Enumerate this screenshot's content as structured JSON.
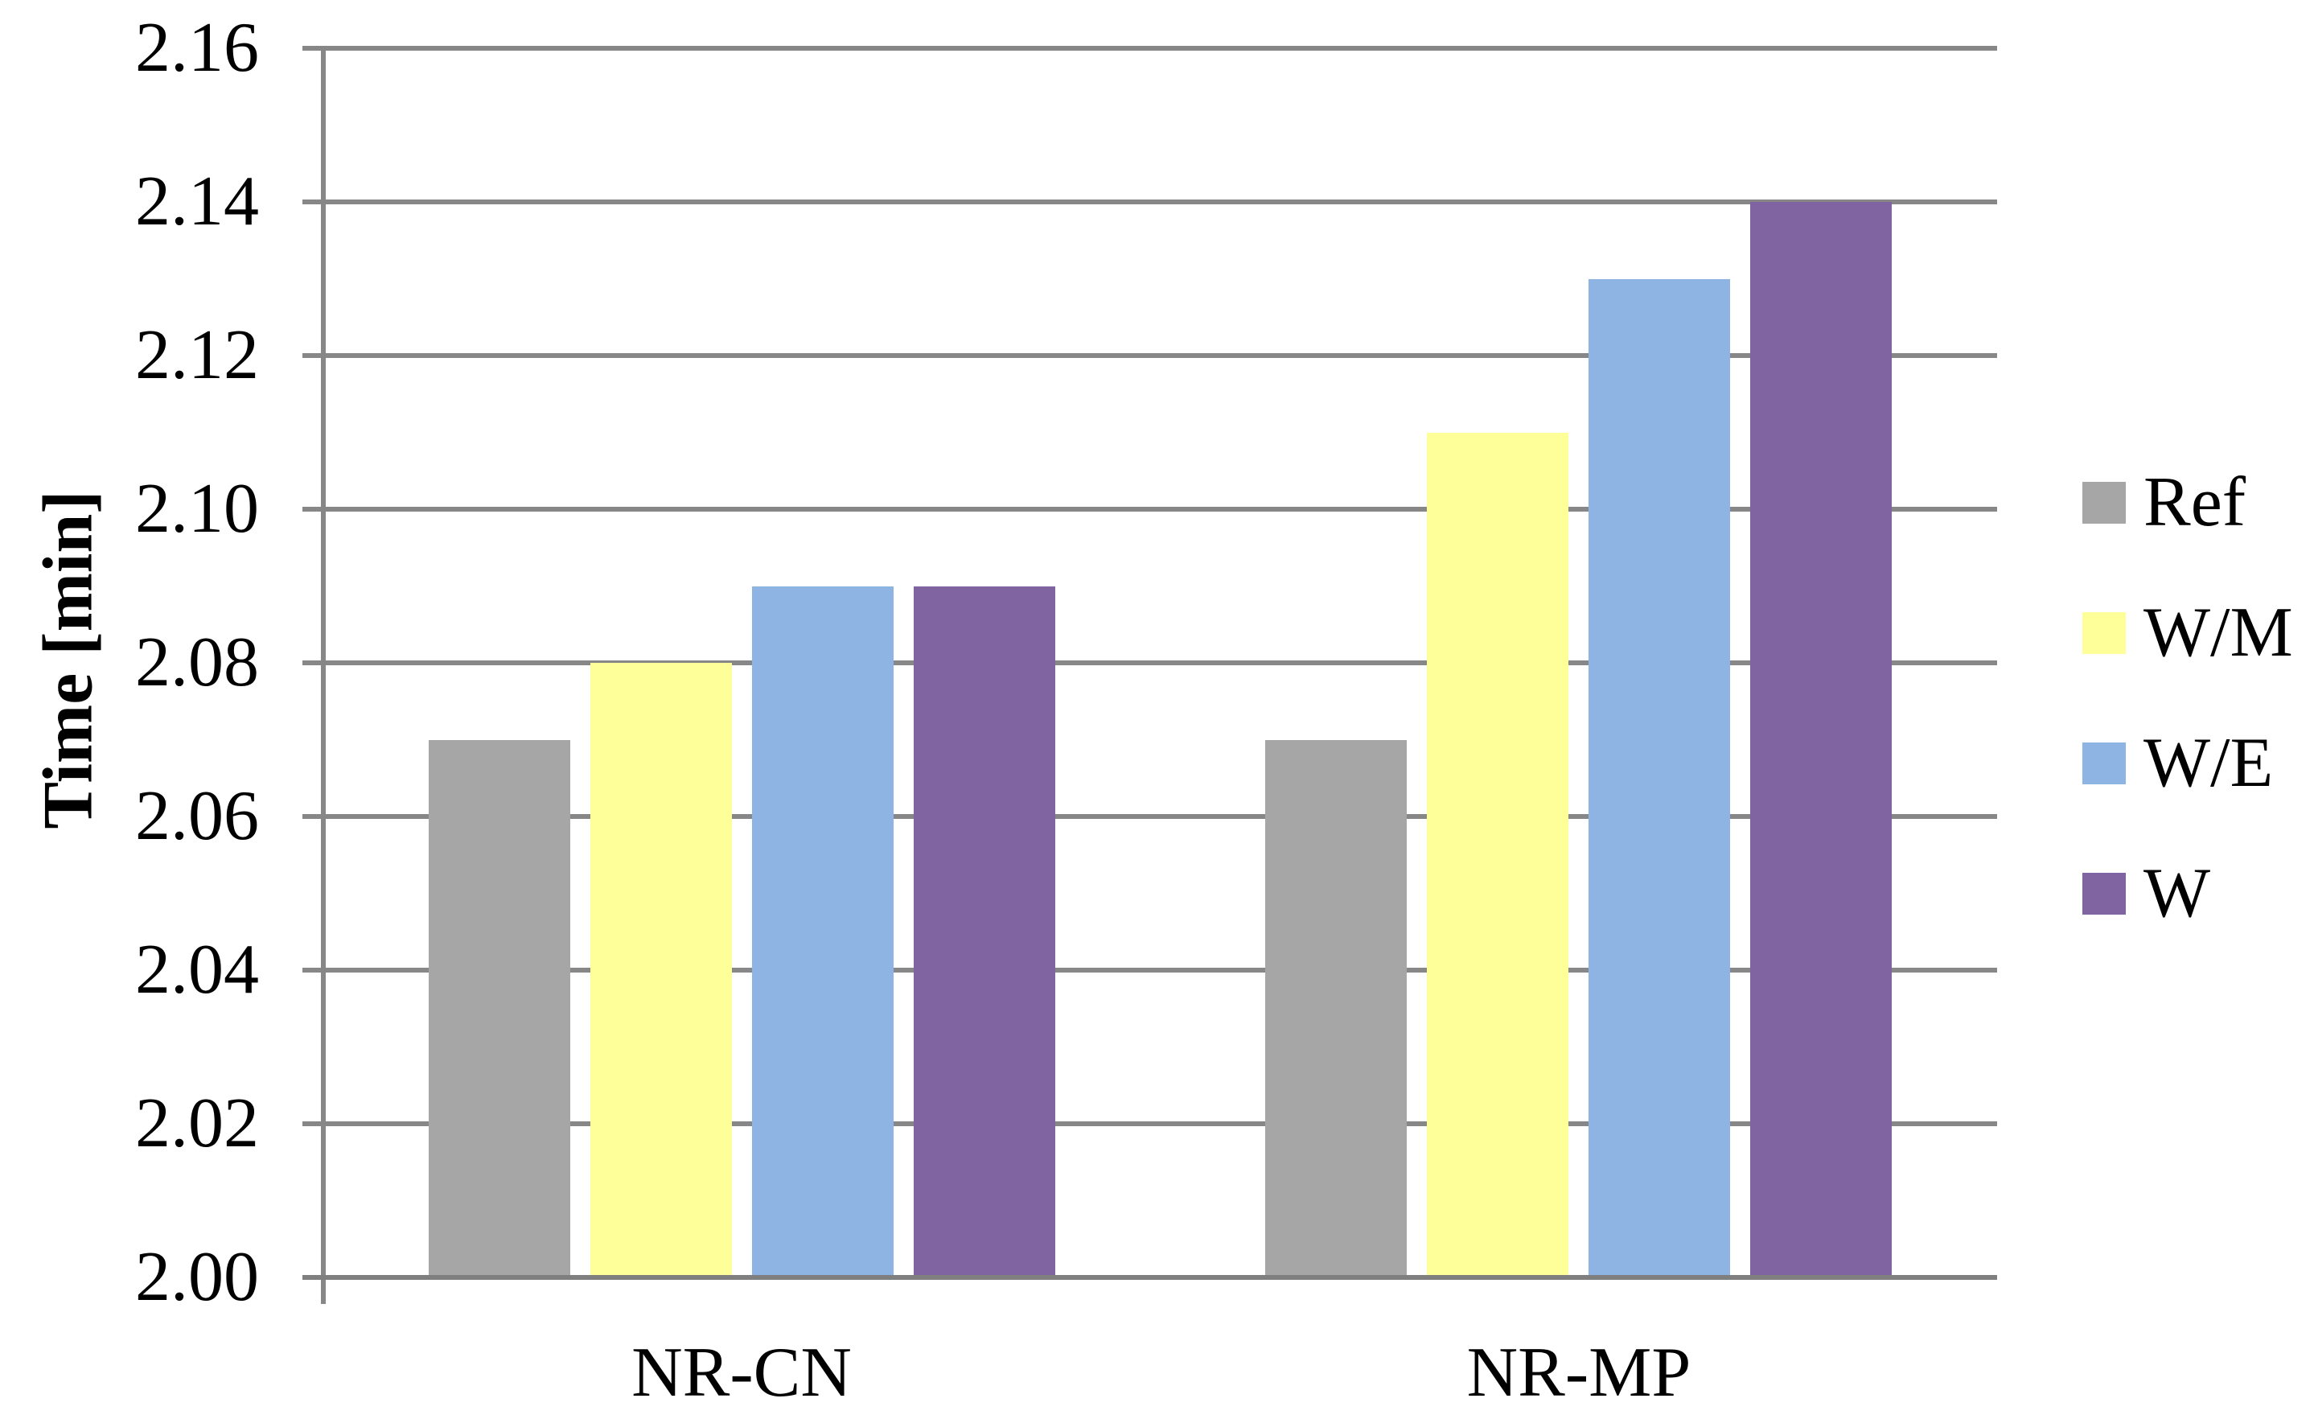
{
  "chart_data": {
    "type": "bar",
    "categories": [
      "NR-CN",
      "NR-MP"
    ],
    "series": [
      {
        "name": "Ref",
        "color": "#A6A6A6",
        "values": [
          2.07,
          2.07
        ]
      },
      {
        "name": "W/M",
        "color": "#FFFF99",
        "values": [
          2.08,
          2.11
        ]
      },
      {
        "name": "W/E",
        "color": "#8DB4E2",
        "values": [
          2.09,
          2.13
        ]
      },
      {
        "name": "W",
        "color": "#8064A2",
        "values": [
          2.09,
          2.14
        ]
      }
    ],
    "ylabel": "Time [min]",
    "xlabel": "",
    "ylim": [
      2.0,
      2.16
    ],
    "ytick_step": 0.02,
    "ytick_labels": [
      "2.00",
      "2.02",
      "2.04",
      "2.06",
      "2.08",
      "2.10",
      "2.12",
      "2.14",
      "2.16"
    ],
    "grid": true,
    "legend_position": "right"
  },
  "colors": {
    "gridline": "#878787",
    "axis": "#7F7F7F",
    "text": "#000000",
    "background": "#FFFFFF"
  }
}
